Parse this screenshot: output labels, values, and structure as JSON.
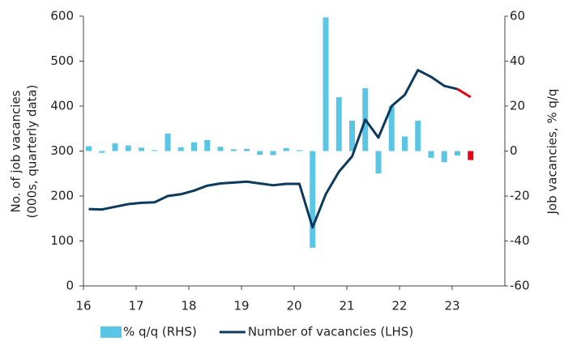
{
  "chart_data": {
    "type": "bar_line",
    "x": [
      16.1,
      16.35,
      16.6,
      16.85,
      17.1,
      17.35,
      17.6,
      17.85,
      18.1,
      18.35,
      18.6,
      18.85,
      19.1,
      19.35,
      19.6,
      19.85,
      20.1,
      20.35,
      20.6,
      20.85,
      21.1,
      21.35,
      21.6,
      21.85,
      22.1,
      22.35,
      22.6,
      22.85,
      23.1,
      23.35
    ],
    "series": [
      {
        "name": "% q/q (RHS)",
        "type": "bar",
        "axis": "y2",
        "color": "#5bc5e6",
        "last_color": "#e30613",
        "values": [
          2.2,
          -0.8,
          3.4,
          2.5,
          1.5,
          0.4,
          7.8,
          1.7,
          3.9,
          4.9,
          1.9,
          0.8,
          1,
          -1.7,
          -1.8,
          1.3,
          0.4,
          -43,
          59.5,
          24,
          13.5,
          28,
          -10,
          20,
          6.5,
          13.5,
          -3,
          -5,
          -2,
          -4
        ]
      },
      {
        "name": "Number of vacancies (LHS)",
        "type": "line",
        "axis": "y",
        "color": "#0d3a5c",
        "last_color": "#e30613",
        "values": [
          171,
          170,
          176,
          182,
          185,
          186,
          200,
          204,
          212,
          223,
          228,
          230,
          232,
          228,
          224,
          227,
          227,
          130,
          204,
          254,
          288,
          370,
          330,
          400,
          425,
          480,
          465,
          445,
          438,
          420
        ]
      }
    ],
    "xlim": [
      16,
      24
    ],
    "xticks": [
      16,
      17,
      18,
      19,
      20,
      21,
      22,
      23
    ],
    "ylim": [
      0,
      600
    ],
    "yticks": [
      0,
      100,
      200,
      300,
      400,
      500,
      600
    ],
    "y2lim": [
      -60,
      60
    ],
    "y2ticks": [
      -60,
      -40,
      -20,
      0,
      20,
      40,
      60
    ],
    "ylabel": [
      "No. of job vacancies",
      "(000s, quarterly data)"
    ],
    "y2label": "Job vacancies, % q/q"
  }
}
